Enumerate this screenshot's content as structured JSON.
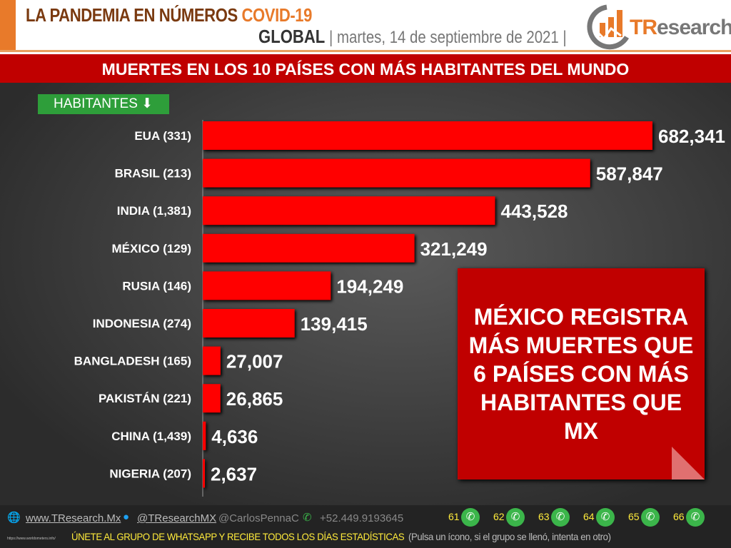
{
  "header": {
    "title": "LA PANDEMIA EN NÚMEROS",
    "title_accent": "COVID-19",
    "scope": "GLOBAL",
    "date": "martes, 14 de septiembre de 2021",
    "logo": "TResearch"
  },
  "banner": "MUERTES EN LOS 10 PAÍSES CON MÁS HABITANTES DEL MUNDO",
  "sort_label": "HABITANTES",
  "note": "MÉXICO REGISTRA MÁS MUERTES QUE 6 PAÍSES CON MÁS HABITANTES QUE MX",
  "colors": {
    "bar": "#ff0000",
    "banner": "#c00000",
    "accent": "#e87a2a",
    "sort_label": "#2e9e3a"
  },
  "chart_data": {
    "type": "bar",
    "orientation": "horizontal",
    "categories": [
      "EUA (331)",
      "BRASIL (213)",
      "INDIA (1,381)",
      "MÉXICO (129)",
      "RUSIA (146)",
      "INDONESIA (274)",
      "BANGLADESH (165)",
      "PAKISTÁN (221)",
      "CHINA (1,439)",
      "NIGERIA (207)"
    ],
    "values": [
      682341,
      587847,
      443528,
      321249,
      194249,
      139415,
      27007,
      26865,
      4636,
      2637
    ],
    "labels": [
      "682,341",
      "587,847",
      "443,528",
      "321,249",
      "194,249",
      "139,415",
      "27,007",
      "26,865",
      "4,636",
      "2,637"
    ],
    "grid": false
  },
  "footer": {
    "web": "www.TResearch.Mx",
    "twitter": "@TResearchMX",
    "personal": "@CarlosPennaC",
    "phone": "+52.449.9193645",
    "groups": [
      "61",
      "62",
      "63",
      "64",
      "65",
      "66"
    ],
    "cta": "ÚNETE AL GRUPO DE WHATSAPP Y RECIBE TODOS LOS DÍAS ESTADÍSTICAS",
    "cta_note": "(Pulsa un ícono, si el grupo se llenó, intenta en otro)",
    "source": "https://www.worldometers.info/"
  }
}
